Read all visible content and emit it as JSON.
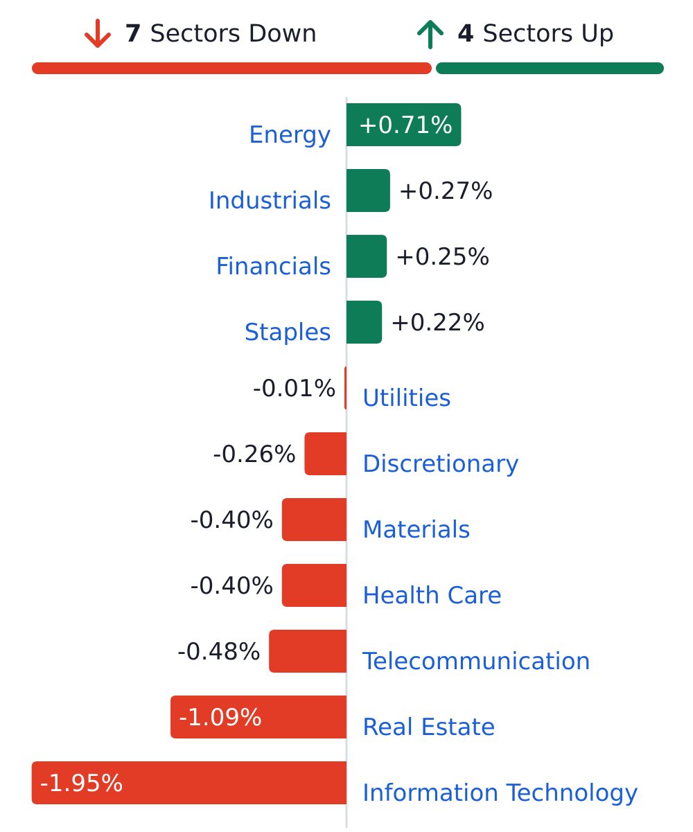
{
  "summary": {
    "down": {
      "count": "7",
      "text": "Sectors Down",
      "color": "#e23b26"
    },
    "up": {
      "count": "4",
      "text": "Sectors Up",
      "color": "#0e7c57"
    }
  },
  "colors": {
    "positive": "#0e7c57",
    "negative": "#e23b26",
    "label": "#1a5fd8",
    "value_text": "#1a1d2b",
    "axis": "#d9dde3"
  },
  "chart_data": {
    "type": "bar",
    "orientation": "horizontal-diverging",
    "categories": [
      "Energy",
      "Industrials",
      "Financials",
      "Staples",
      "Utilities",
      "Discretionary",
      "Materials",
      "Health Care",
      "Telecommunication",
      "Real Estate",
      "Information Technology"
    ],
    "values": [
      0.71,
      0.27,
      0.25,
      0.22,
      -0.01,
      -0.26,
      -0.4,
      -0.4,
      -0.48,
      -1.09,
      -1.95
    ],
    "labels": [
      "+0.71%",
      "+0.27%",
      "+0.25%",
      "+0.22%",
      "-0.01%",
      "-0.26%",
      "-0.40%",
      "-0.40%",
      "-0.48%",
      "-1.09%",
      "-1.95%"
    ],
    "unit": "%",
    "title": "",
    "xlabel": "",
    "ylabel": "",
    "grid": false
  }
}
